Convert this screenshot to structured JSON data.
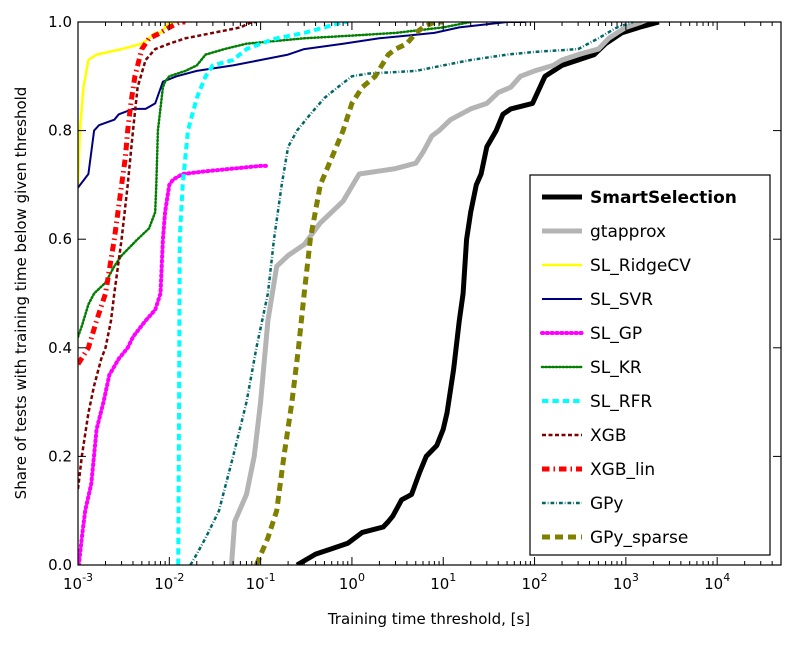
{
  "chart_data": {
    "type": "line",
    "xlabel": "Training time threshold, [s]",
    "ylabel": "Share of tests with training time below given threshold",
    "xscale": "log",
    "xlim": [
      0.001,
      50000
    ],
    "ylim": [
      0,
      1
    ],
    "x_ticks": [
      {
        "value": 0.001,
        "base": "10",
        "exp": "-3"
      },
      {
        "value": 0.01,
        "base": "10",
        "exp": "-2"
      },
      {
        "value": 0.1,
        "base": "10",
        "exp": "-1"
      },
      {
        "value": 1,
        "base": "10",
        "exp": "0"
      },
      {
        "value": 10,
        "base": "10",
        "exp": "1"
      },
      {
        "value": 100,
        "base": "10",
        "exp": "2"
      },
      {
        "value": 1000,
        "base": "10",
        "exp": "3"
      },
      {
        "value": 10000,
        "base": "10",
        "exp": "4"
      }
    ],
    "y_ticks": [
      {
        "value": 0,
        "label": "0.0"
      },
      {
        "value": 0.2,
        "label": "0.2"
      },
      {
        "value": 0.4,
        "label": "0.4"
      },
      {
        "value": 0.6,
        "label": "0.6"
      },
      {
        "value": 0.8,
        "label": "0.8"
      },
      {
        "value": 1,
        "label": "1.0"
      }
    ],
    "legend_position": "lower-right",
    "series": [
      {
        "name": "SmartSelection",
        "color": "#000000",
        "style": "solid",
        "width": 5,
        "bold": true,
        "points": [
          [
            0.25,
            0
          ],
          [
            0.4,
            0.02
          ],
          [
            0.6,
            0.03
          ],
          [
            0.9,
            0.04
          ],
          [
            1.3,
            0.06
          ],
          [
            2.2,
            0.07
          ],
          [
            2.5,
            0.08
          ],
          [
            2.8,
            0.09
          ],
          [
            3.5,
            0.12
          ],
          [
            4.5,
            0.13
          ],
          [
            5.5,
            0.17
          ],
          [
            6.5,
            0.2
          ],
          [
            8.5,
            0.22
          ],
          [
            10,
            0.25
          ],
          [
            11,
            0.28
          ],
          [
            13,
            0.36
          ],
          [
            15,
            0.45
          ],
          [
            16.5,
            0.5
          ],
          [
            18,
            0.6
          ],
          [
            20,
            0.65
          ],
          [
            23,
            0.7
          ],
          [
            26,
            0.72
          ],
          [
            30,
            0.77
          ],
          [
            38,
            0.8
          ],
          [
            45,
            0.83
          ],
          [
            55,
            0.84
          ],
          [
            95,
            0.85
          ],
          [
            130,
            0.9
          ],
          [
            200,
            0.92
          ],
          [
            300,
            0.93
          ],
          [
            450,
            0.94
          ],
          [
            600,
            0.96
          ],
          [
            900,
            0.98
          ],
          [
            1400,
            0.99
          ],
          [
            2300,
            1.0
          ]
        ]
      },
      {
        "name": "gtapprox",
        "color": "#b4b4b4",
        "style": "solid",
        "width": 5,
        "bold": false,
        "points": [
          [
            0.048,
            0
          ],
          [
            0.052,
            0.08
          ],
          [
            0.07,
            0.13
          ],
          [
            0.085,
            0.2
          ],
          [
            0.1,
            0.3
          ],
          [
            0.12,
            0.45
          ],
          [
            0.15,
            0.55
          ],
          [
            0.2,
            0.57
          ],
          [
            0.3,
            0.59
          ],
          [
            0.45,
            0.63
          ],
          [
            0.8,
            0.67
          ],
          [
            1.2,
            0.72
          ],
          [
            3,
            0.73
          ],
          [
            5,
            0.74
          ],
          [
            6,
            0.76
          ],
          [
            7.5,
            0.79
          ],
          [
            9,
            0.8
          ],
          [
            12,
            0.82
          ],
          [
            20,
            0.84
          ],
          [
            30,
            0.85
          ],
          [
            40,
            0.87
          ],
          [
            55,
            0.88
          ],
          [
            70,
            0.9
          ],
          [
            100,
            0.91
          ],
          [
            160,
            0.92
          ],
          [
            200,
            0.93
          ],
          [
            300,
            0.94
          ],
          [
            500,
            0.95
          ],
          [
            650,
            0.97
          ],
          [
            800,
            0.98
          ],
          [
            1000,
            0.99
          ],
          [
            1500,
            1.0
          ]
        ]
      },
      {
        "name": "SL_RidgeCV",
        "color": "#ffff00",
        "style": "solid",
        "width": 2.5,
        "bold": false,
        "points": [
          [
            0.001,
            0.7
          ],
          [
            0.00105,
            0.8
          ],
          [
            0.00115,
            0.88
          ],
          [
            0.0013,
            0.93
          ],
          [
            0.0016,
            0.94
          ],
          [
            0.003,
            0.95
          ],
          [
            0.005,
            0.96
          ],
          [
            0.006,
            0.97
          ],
          [
            0.007,
            0.98
          ],
          [
            0.008,
            0.98
          ],
          [
            0.009,
            0.99
          ],
          [
            0.01,
            1.0
          ],
          [
            0.012,
            1.0
          ]
        ]
      },
      {
        "name": "SL_SVR",
        "color": "#00007f",
        "style": "solid",
        "width": 2,
        "bold": false,
        "points": [
          [
            0.001,
            0.695
          ],
          [
            0.0013,
            0.72
          ],
          [
            0.0015,
            0.8
          ],
          [
            0.0017,
            0.81
          ],
          [
            0.0025,
            0.82
          ],
          [
            0.0028,
            0.83
          ],
          [
            0.004,
            0.84
          ],
          [
            0.0055,
            0.84
          ],
          [
            0.007,
            0.85
          ],
          [
            0.0085,
            0.89
          ],
          [
            0.012,
            0.9
          ],
          [
            0.02,
            0.91
          ],
          [
            0.05,
            0.92
          ],
          [
            0.1,
            0.93
          ],
          [
            0.2,
            0.94
          ],
          [
            0.3,
            0.95
          ],
          [
            0.8,
            0.96
          ],
          [
            2,
            0.97
          ],
          [
            4,
            0.975
          ],
          [
            8,
            0.98
          ],
          [
            15,
            0.99
          ],
          [
            50,
            1.0
          ],
          [
            80,
            1.0
          ]
        ]
      },
      {
        "name": "SL_GP",
        "color": "#ff00ff",
        "style": "dotted",
        "width": 4,
        "bold": false,
        "points": [
          [
            0.00102,
            0
          ],
          [
            0.0011,
            0.05
          ],
          [
            0.0012,
            0.1
          ],
          [
            0.0014,
            0.15
          ],
          [
            0.0016,
            0.25
          ],
          [
            0.0019,
            0.3
          ],
          [
            0.0022,
            0.35
          ],
          [
            0.0028,
            0.38
          ],
          [
            0.0035,
            0.4
          ],
          [
            0.004,
            0.42
          ],
          [
            0.0055,
            0.45
          ],
          [
            0.007,
            0.47
          ],
          [
            0.008,
            0.5
          ],
          [
            0.0085,
            0.6
          ],
          [
            0.009,
            0.65
          ],
          [
            0.01,
            0.7
          ],
          [
            0.011,
            0.71
          ],
          [
            0.014,
            0.72
          ],
          [
            0.025,
            0.725
          ],
          [
            0.05,
            0.73
          ],
          [
            0.1,
            0.735
          ],
          [
            0.12,
            0.735
          ]
        ]
      },
      {
        "name": "SL_KR",
        "color": "#007f00",
        "style": "dotted",
        "width": 2.5,
        "bold": false,
        "points": [
          [
            0.001,
            0.42
          ],
          [
            0.0011,
            0.44
          ],
          [
            0.0013,
            0.48
          ],
          [
            0.0015,
            0.5
          ],
          [
            0.002,
            0.52
          ],
          [
            0.0025,
            0.55
          ],
          [
            0.003,
            0.57
          ],
          [
            0.0045,
            0.6
          ],
          [
            0.006,
            0.62
          ],
          [
            0.007,
            0.65
          ],
          [
            0.0072,
            0.7
          ],
          [
            0.0075,
            0.8
          ],
          [
            0.0085,
            0.88
          ],
          [
            0.009,
            0.89
          ],
          [
            0.01,
            0.9
          ],
          [
            0.015,
            0.91
          ],
          [
            0.02,
            0.92
          ],
          [
            0.025,
            0.94
          ],
          [
            0.04,
            0.95
          ],
          [
            0.07,
            0.96
          ],
          [
            0.3,
            0.97
          ],
          [
            1,
            0.975
          ],
          [
            3,
            0.98
          ],
          [
            10,
            0.99
          ],
          [
            20,
            1.0
          ]
        ]
      },
      {
        "name": "SL_RFR",
        "color": "#00ffff",
        "style": "dashed",
        "width": 4,
        "bold": false,
        "points": [
          [
            0.0125,
            0
          ],
          [
            0.0128,
            0.3
          ],
          [
            0.013,
            0.6
          ],
          [
            0.014,
            0.7
          ],
          [
            0.016,
            0.8
          ],
          [
            0.02,
            0.86
          ],
          [
            0.025,
            0.9
          ],
          [
            0.03,
            0.92
          ],
          [
            0.05,
            0.93
          ],
          [
            0.07,
            0.95
          ],
          [
            0.1,
            0.96
          ],
          [
            0.15,
            0.97
          ],
          [
            0.3,
            0.98
          ],
          [
            0.5,
            0.99
          ],
          [
            0.8,
            1.0
          ],
          [
            0.9,
            1.0
          ]
        ]
      },
      {
        "name": "XGB",
        "color": "#7f0000",
        "style": "dashed",
        "width": 2.5,
        "bold": false,
        "points": [
          [
            0.001,
            0.14
          ],
          [
            0.0011,
            0.2
          ],
          [
            0.0013,
            0.28
          ],
          [
            0.0015,
            0.33
          ],
          [
            0.0018,
            0.38
          ],
          [
            0.002,
            0.4
          ],
          [
            0.0023,
            0.45
          ],
          [
            0.0025,
            0.5
          ],
          [
            0.003,
            0.6
          ],
          [
            0.0035,
            0.7
          ],
          [
            0.004,
            0.8
          ],
          [
            0.0045,
            0.88
          ],
          [
            0.0055,
            0.93
          ],
          [
            0.007,
            0.95
          ],
          [
            0.01,
            0.96
          ],
          [
            0.015,
            0.97
          ],
          [
            0.03,
            0.98
          ],
          [
            0.06,
            0.99
          ],
          [
            0.08,
            1.0
          ],
          [
            0.09,
            1.0
          ]
        ]
      },
      {
        "name": "XGB_lin",
        "color": "#ff0000",
        "style": "dashdot",
        "width": 5,
        "bold": false,
        "points": [
          [
            0.001,
            0.37
          ],
          [
            0.0013,
            0.4
          ],
          [
            0.0016,
            0.45
          ],
          [
            0.002,
            0.5
          ],
          [
            0.0025,
            0.6
          ],
          [
            0.003,
            0.7
          ],
          [
            0.0033,
            0.75
          ],
          [
            0.0035,
            0.8
          ],
          [
            0.0038,
            0.85
          ],
          [
            0.0042,
            0.9
          ],
          [
            0.005,
            0.95
          ],
          [
            0.006,
            0.97
          ],
          [
            0.008,
            0.98
          ],
          [
            0.01,
            0.99
          ],
          [
            0.013,
            1.0
          ],
          [
            0.015,
            1.0
          ]
        ]
      },
      {
        "name": "GPy",
        "color": "#006666",
        "style": "dashdot",
        "width": 2.5,
        "bold": false,
        "points": [
          [
            0.017,
            0
          ],
          [
            0.02,
            0.02
          ],
          [
            0.025,
            0.05
          ],
          [
            0.035,
            0.1
          ],
          [
            0.05,
            0.2
          ],
          [
            0.07,
            0.3
          ],
          [
            0.09,
            0.4
          ],
          [
            0.12,
            0.5
          ],
          [
            0.14,
            0.6
          ],
          [
            0.17,
            0.7
          ],
          [
            0.2,
            0.77
          ],
          [
            0.25,
            0.8
          ],
          [
            0.35,
            0.83
          ],
          [
            0.5,
            0.86
          ],
          [
            0.7,
            0.88
          ],
          [
            1,
            0.9
          ],
          [
            1.5,
            0.905
          ],
          [
            5,
            0.91
          ],
          [
            10,
            0.92
          ],
          [
            20,
            0.93
          ],
          [
            50,
            0.94
          ],
          [
            100,
            0.945
          ],
          [
            300,
            0.95
          ],
          [
            500,
            0.97
          ],
          [
            800,
            0.99
          ],
          [
            1200,
            1.0
          ]
        ]
      },
      {
        "name": "GPy_sparse",
        "color": "#7f7f00",
        "style": "dashed",
        "width": 5,
        "bold": false,
        "points": [
          [
            0.09,
            0
          ],
          [
            0.12,
            0.05
          ],
          [
            0.15,
            0.1
          ],
          [
            0.18,
            0.2
          ],
          [
            0.22,
            0.3
          ],
          [
            0.26,
            0.4
          ],
          [
            0.3,
            0.5
          ],
          [
            0.35,
            0.6
          ],
          [
            0.45,
            0.7
          ],
          [
            0.6,
            0.75
          ],
          [
            0.8,
            0.8
          ],
          [
            1,
            0.85
          ],
          [
            1.3,
            0.88
          ],
          [
            1.8,
            0.9
          ],
          [
            2.5,
            0.94
          ],
          [
            3,
            0.95
          ],
          [
            4,
            0.96
          ],
          [
            5,
            0.98
          ],
          [
            6,
            0.99
          ],
          [
            8,
            1.0
          ],
          [
            10,
            1.0
          ]
        ]
      }
    ]
  }
}
